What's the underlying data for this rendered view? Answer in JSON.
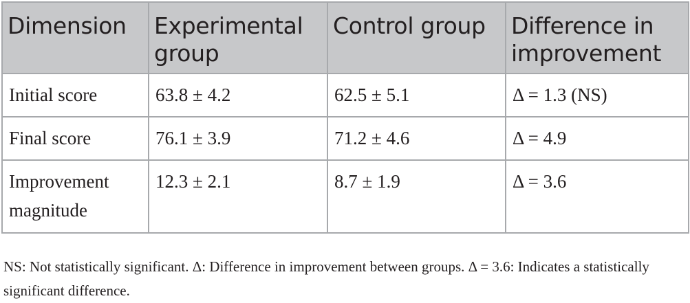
{
  "table": {
    "headers": [
      "Dimension",
      "Experimental group",
      "Control group",
      "Difference in improvement"
    ],
    "rows": [
      [
        "Initial score",
        "63.8 ± 4.2",
        "62.5 ± 5.1",
        "Δ = 1.3 (NS)"
      ],
      [
        "Final score",
        "76.1 ± 3.9",
        "71.2 ± 4.6",
        "Δ = 4.9"
      ],
      [
        "Improvement magnitude",
        "12.3 ± 2.1",
        "8.7 ± 1.9",
        "Δ = 3.6"
      ]
    ]
  },
  "footnote": "NS: Not statistically significant. Δ: Difference in improvement between groups. Δ = 3.6: Indicates a statistically significant difference.",
  "colors": {
    "header_bg": "#c7c8ca",
    "border": "#a7a9ac",
    "text": "#231f20"
  }
}
